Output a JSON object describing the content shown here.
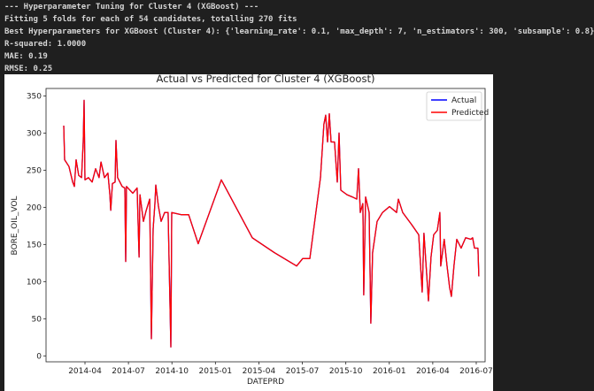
{
  "console": [
    "--- Hyperparameter Tuning for Cluster 4 (XGBoost) ---",
    "Fitting 5 folds for each of 54 candidates, totalling 270 fits",
    "Best Hyperparameters for XGBoost (Cluster 4): {'learning_rate': 0.1, 'max_depth': 7, 'n_estimators': 300, 'subsample': 0.8}",
    "R-squared: 1.0000",
    "MAE: 0.19",
    "RMSE: 0.25"
  ],
  "chart_data": {
    "type": "line",
    "title": "Actual vs Predicted for Cluster 4 (XGBoost)",
    "xlabel": "DATEPRD",
    "ylabel": "BORE_OIL_VOL",
    "legend": "upper right",
    "x": [
      2014.128,
      2014.133,
      2014.158,
      2014.179,
      2014.189,
      2014.199,
      2014.214,
      2014.23,
      2014.24,
      2014.245,
      2014.25,
      2014.27,
      2014.291,
      2014.311,
      2014.331,
      2014.342,
      2014.362,
      2014.382,
      2014.393,
      2014.398,
      2014.408,
      2014.423,
      2014.428,
      2014.438,
      2014.464,
      2014.479,
      2014.484,
      2014.489,
      2014.525,
      2014.55,
      2014.561,
      2014.566,
      2014.586,
      2014.601,
      2014.622,
      2014.632,
      2014.642,
      2014.652,
      2014.657,
      2014.672,
      2014.688,
      2014.708,
      2014.728,
      2014.744,
      2014.749,
      2014.805,
      2014.846,
      2014.901,
      2015.034,
      2015.212,
      2015.339,
      2015.467,
      2015.502,
      2015.543,
      2015.604,
      2015.624,
      2015.634,
      2015.645,
      2015.655,
      2015.665,
      2015.685,
      2015.701,
      2015.711,
      2015.721,
      2015.757,
      2015.787,
      2015.813,
      2015.823,
      2015.833,
      2015.848,
      2015.853,
      2015.864,
      2015.884,
      2015.894,
      2015.904,
      2015.93,
      2015.961,
      2016.001,
      2016.042,
      2016.052,
      2016.077,
      2016.128,
      2016.169,
      2016.189,
      2016.199,
      2016.225,
      2016.24,
      2016.255,
      2016.276,
      2016.291,
      2016.296,
      2016.316,
      2016.332,
      2016.347,
      2016.357,
      2016.372,
      2016.388,
      2016.413,
      2016.439,
      2016.469,
      2016.479,
      2016.49,
      2016.51,
      2016.515
    ],
    "series": [
      {
        "name": "Actual",
        "color": "#0000ff",
        "values": [
          310,
          264,
          255,
          234,
          228,
          264,
          243,
          240,
          288,
          344,
          237,
          240,
          234,
          252,
          240,
          261,
          240,
          246,
          217,
          196,
          232,
          234,
          290,
          240,
          228,
          226,
          127,
          228,
          219,
          226,
          133,
          217,
          181,
          195,
          211,
          23,
          171,
          205,
          230,
          202,
          181,
          193,
          193,
          12,
          193,
          190,
          190,
          151,
          237,
          159,
          139,
          121,
          131,
          131,
          240,
          312,
          324,
          288,
          326,
          288,
          288,
          234,
          300,
          223,
          217,
          214,
          211,
          252,
          193,
          205,
          82,
          214,
          193,
          44,
          139,
          181,
          193,
          201,
          193,
          211,
          193,
          177,
          163,
          86,
          165,
          74,
          133,
          163,
          169,
          193,
          121,
          157,
          121,
          92,
          80,
          121,
          157,
          145,
          159,
          157,
          159,
          145,
          145,
          107
        ]
      },
      {
        "name": "Predicted",
        "color": "#ff0000",
        "values": [
          310,
          264,
          255,
          234,
          228,
          264,
          243,
          240,
          288,
          344,
          237,
          240,
          234,
          252,
          240,
          261,
          240,
          246,
          217,
          196,
          232,
          234,
          290,
          240,
          228,
          226,
          127,
          228,
          219,
          226,
          133,
          217,
          181,
          195,
          211,
          23,
          171,
          205,
          230,
          202,
          181,
          193,
          193,
          12,
          193,
          190,
          190,
          151,
          237,
          159,
          139,
          121,
          131,
          131,
          240,
          312,
          324,
          288,
          326,
          288,
          288,
          234,
          300,
          223,
          217,
          214,
          211,
          252,
          193,
          205,
          82,
          214,
          193,
          44,
          139,
          181,
          193,
          201,
          193,
          211,
          193,
          177,
          163,
          86,
          165,
          74,
          133,
          163,
          169,
          193,
          121,
          157,
          121,
          92,
          80,
          121,
          157,
          145,
          159,
          157,
          159,
          145,
          145,
          107
        ]
      }
    ],
    "xlim": [
      2014.026,
      2016.551
    ],
    "xticks": [
      {
        "value": 2014.25,
        "label": "2014-04"
      },
      {
        "value": 2014.5,
        "label": "2014-07"
      },
      {
        "value": 2014.75,
        "label": "2014-10"
      },
      {
        "value": 2015.0,
        "label": "2015-01"
      },
      {
        "value": 2015.25,
        "label": "2015-04"
      },
      {
        "value": 2015.5,
        "label": "2015-07"
      },
      {
        "value": 2015.75,
        "label": "2015-10"
      },
      {
        "value": 2016.0,
        "label": "2016-01"
      },
      {
        "value": 2016.25,
        "label": "2016-04"
      },
      {
        "value": 2016.5,
        "label": "2016-07"
      }
    ],
    "ylim": [
      -8,
      360
    ],
    "yticks": [
      0,
      50,
      100,
      150,
      200,
      250,
      300,
      350
    ]
  }
}
